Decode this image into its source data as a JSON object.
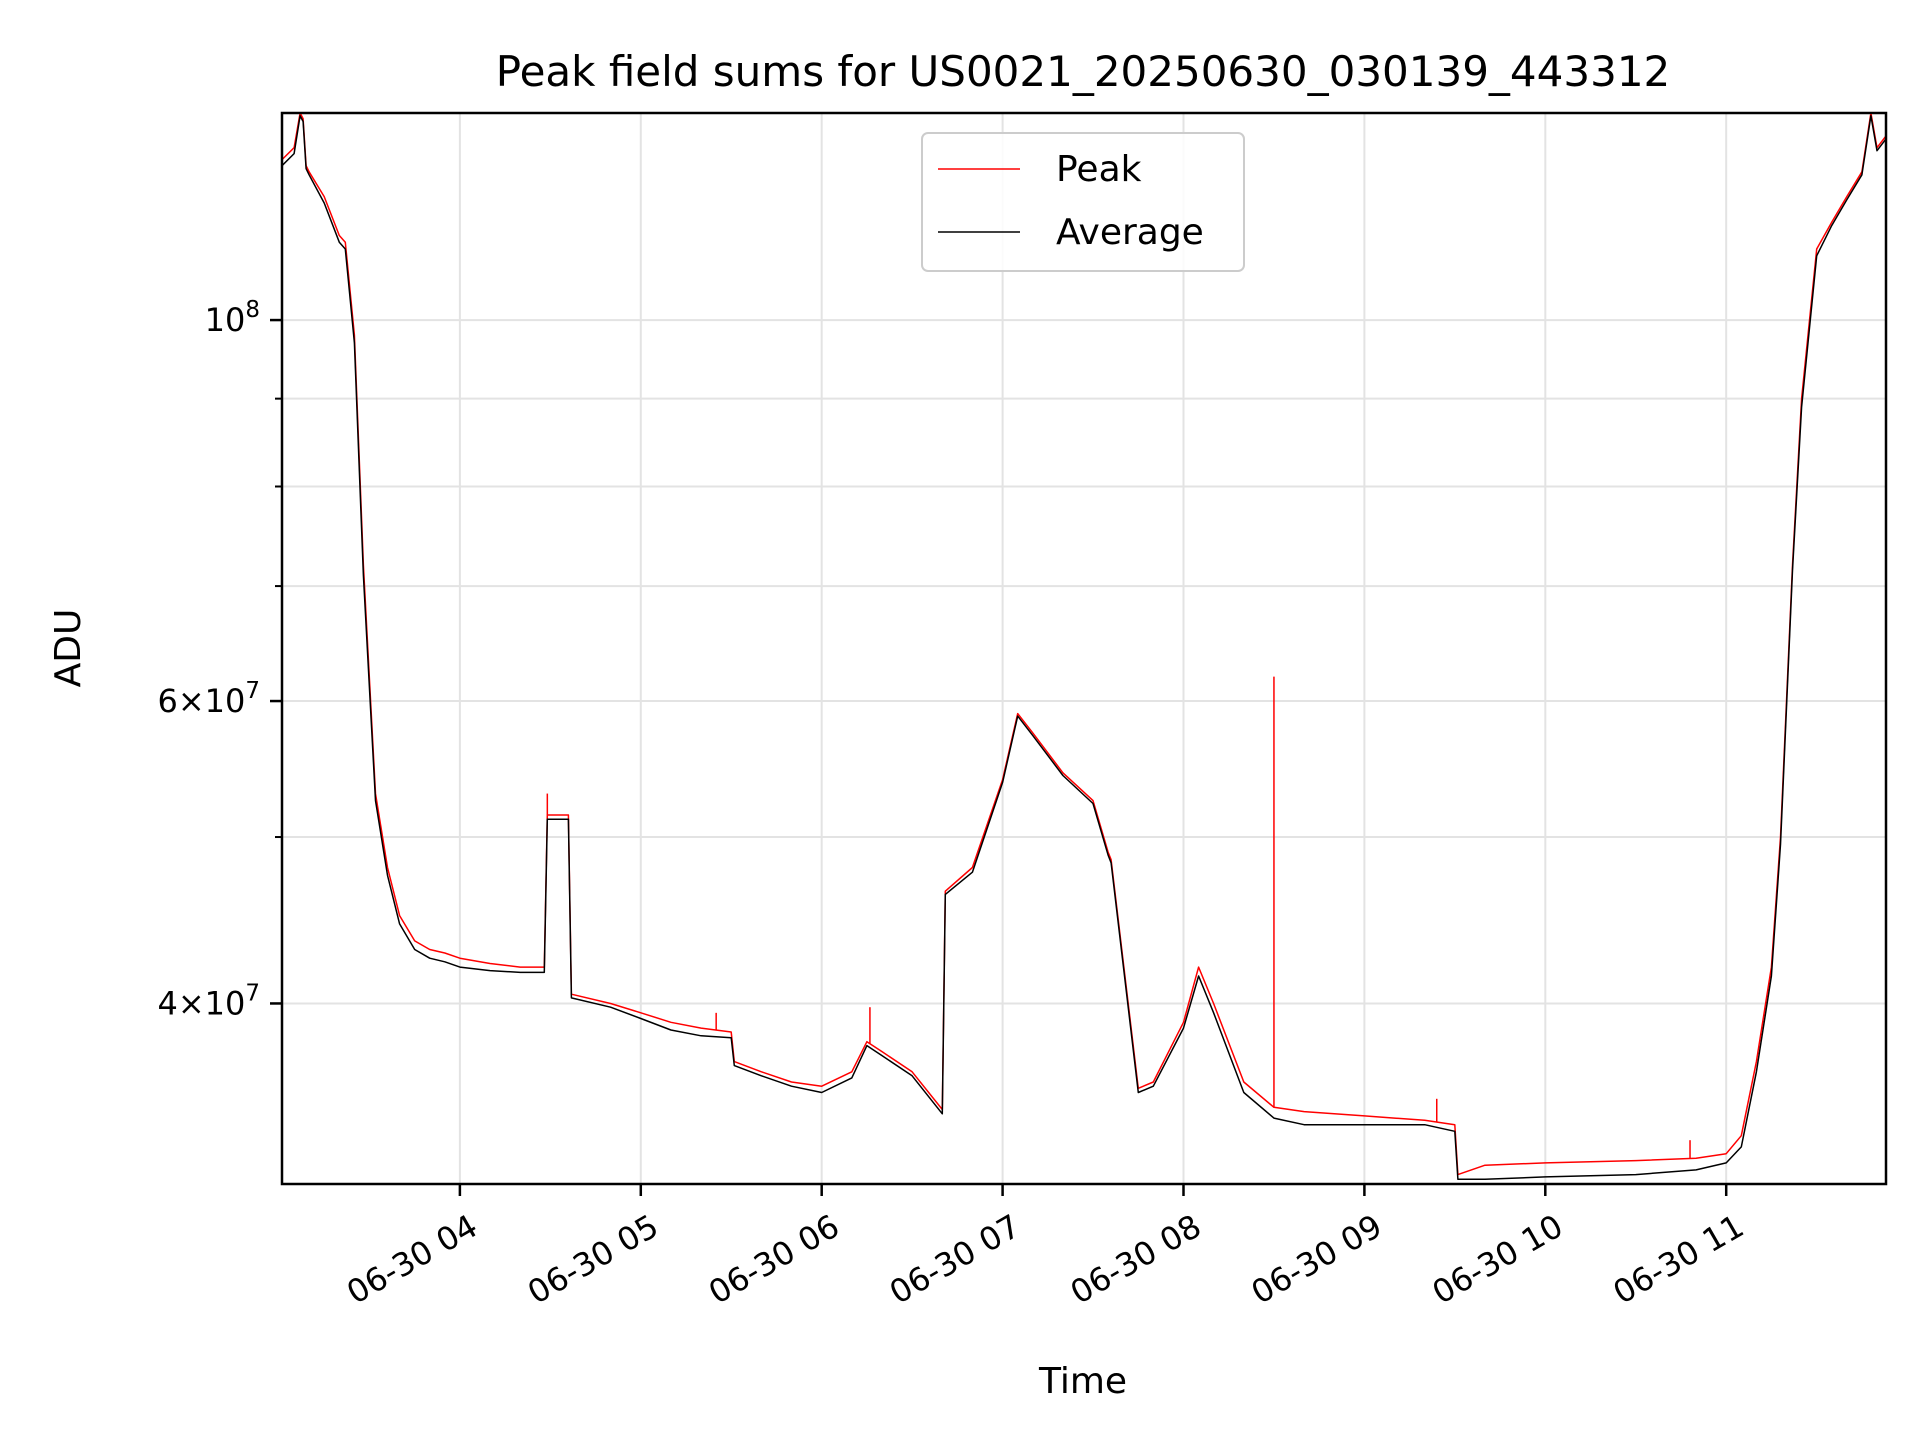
{
  "chart_data": {
    "type": "line",
    "title": "Peak field sums for US0021_20250630_030139_443312",
    "xlabel": "Time",
    "ylabel": "ADU",
    "y_scale": "log",
    "ylim": [
      31400000,
      132000000
    ],
    "xlim": [
      "06-30 03:01",
      "06-30 11:53"
    ],
    "grid": true,
    "legend": {
      "placement": "upper-center"
    },
    "x_ticks": [
      "06-30 04",
      "06-30 05",
      "06-30 06",
      "06-30 07",
      "06-30 08",
      "06-30 09",
      "06-30 10",
      "06-30 11"
    ],
    "y_ticks": [
      {
        "value": 40000000,
        "base": "4×10",
        "exp": "7"
      },
      {
        "value": 60000000,
        "base": "6×10",
        "exp": "7"
      },
      {
        "value": 100000000,
        "base": "10",
        "exp": "8"
      }
    ],
    "y_minor_ticks": [
      50000000,
      70000000,
      80000000,
      90000000
    ],
    "x": [
      "03:01",
      "03:05",
      "03:07",
      "03:08",
      "03:09",
      "03:10",
      "03:15",
      "03:20",
      "03:22",
      "03:25",
      "03:28",
      "03:32",
      "03:36",
      "03:40",
      "03:45",
      "03:50",
      "03:55",
      "04:00",
      "04:10",
      "04:20",
      "04:28",
      "04:29",
      "04:36",
      "04:37",
      "04:50",
      "05:00",
      "05:10",
      "05:20",
      "05:30",
      "05:31",
      "05:40",
      "05:50",
      "06:00",
      "06:10",
      "06:15",
      "06:20",
      "06:30",
      "06:40",
      "06:41",
      "06:50",
      "07:00",
      "07:05",
      "07:10",
      "07:20",
      "07:30",
      "07:35",
      "07:36",
      "07:45",
      "07:50",
      "08:00",
      "08:05",
      "08:10",
      "08:20",
      "08:30",
      "08:40",
      "08:50",
      "09:00",
      "09:10",
      "09:20",
      "09:30",
      "09:31",
      "09:40",
      "10:00",
      "10:30",
      "10:50",
      "11:00",
      "11:05",
      "11:10",
      "11:15",
      "11:18",
      "11:20",
      "11:22",
      "11:25",
      "11:30",
      "11:35",
      "11:40",
      "11:45",
      "11:48",
      "11:50",
      "11:53"
    ],
    "series": [
      {
        "name": "Peak",
        "color": "#ff0000",
        "values": [
          124000000,
          126000000,
          132000000,
          131000000,
          123000000,
          122000000,
          118000000,
          112000000,
          111000000,
          98000000,
          72000000,
          53000000,
          48000000,
          45000000,
          43500000,
          43000000,
          42800000,
          42500000,
          42200000,
          42000000,
          42000000,
          51500000,
          51500000,
          40500000,
          40000000,
          39500000,
          39000000,
          38700000,
          38500000,
          37000000,
          36500000,
          36000000,
          35800000,
          36500000,
          38000000,
          37500000,
          36500000,
          34700000,
          46500000,
          48000000,
          54000000,
          59000000,
          57500000,
          54500000,
          52500000,
          49000000,
          48500000,
          35700000,
          36000000,
          39000000,
          42000000,
          40000000,
          36000000,
          34800000,
          34600000,
          34500000,
          34400000,
          34300000,
          34200000,
          34000000,
          31800000,
          32200000,
          32300000,
          32400000,
          32500000,
          32700000,
          33500000,
          37000000,
          42000000,
          50000000,
          60000000,
          72000000,
          90000000,
          110000000,
          114000000,
          118000000,
          122000000,
          132000000,
          126000000,
          128000000
        ],
        "spikes": [
          {
            "x": "08:30",
            "value": 62000000
          },
          {
            "x": "04:29",
            "value": 53000000
          },
          {
            "x": "09:24",
            "value": 35200000
          },
          {
            "x": "06:16",
            "value": 39800000
          },
          {
            "x": "05:25",
            "value": 39500000
          },
          {
            "x": "10:48",
            "value": 33300000
          }
        ]
      },
      {
        "name": "Average",
        "color": "#000000",
        "values": [
          123000000,
          125000000,
          131500000,
          130500000,
          122500000,
          121500000,
          117000000,
          111000000,
          110000000,
          97000000,
          71000000,
          52500000,
          47500000,
          44500000,
          43000000,
          42500000,
          42300000,
          42000000,
          41800000,
          41700000,
          41700000,
          51200000,
          51200000,
          40300000,
          39800000,
          39200000,
          38600000,
          38300000,
          38200000,
          36800000,
          36300000,
          35800000,
          35500000,
          36200000,
          37800000,
          37300000,
          36300000,
          34500000,
          46300000,
          47700000,
          53800000,
          58800000,
          57300000,
          54300000,
          52300000,
          48800000,
          48300000,
          35500000,
          35800000,
          38700000,
          41500000,
          39500000,
          35500000,
          34300000,
          34000000,
          34000000,
          34000000,
          34000000,
          34000000,
          33700000,
          31600000,
          31600000,
          31700000,
          31800000,
          32000000,
          32300000,
          33000000,
          36500000,
          41500000,
          49500000,
          59500000,
          71500000,
          89000000,
          109000000,
          113500000,
          117500000,
          121500000,
          131500000,
          125500000,
          127500000
        ]
      }
    ]
  }
}
